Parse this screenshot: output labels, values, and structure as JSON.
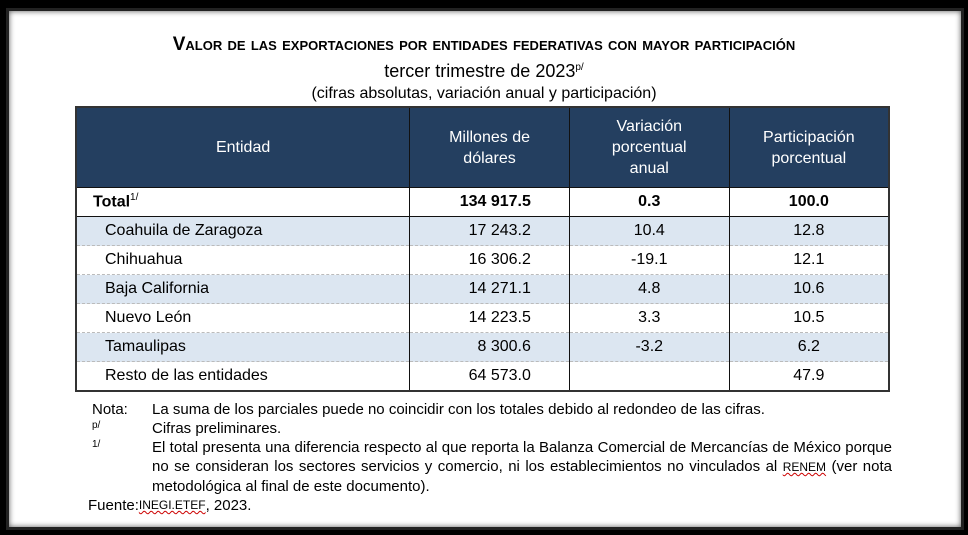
{
  "title": "Valor de las exportaciones por entidades federativas con mayor participación",
  "subtitle": "tercer trimestre de 2023",
  "subtitle_sup": "p/",
  "subtitle2": "(cifras absolutas, variación anual y participación)",
  "table": {
    "headers": [
      "Entidad",
      "Millones de dólares",
      "Variación porcentual anual",
      "Participación porcentual"
    ],
    "total": {
      "entidad": "Total",
      "sup": "1/",
      "millones": "134 917.5",
      "variacion": "0.3",
      "participacion": "100.0"
    },
    "rows": [
      {
        "entidad": "Coahuila de Zaragoza",
        "millones": "17 243.2",
        "variacion": "10.4",
        "participacion": "12.8"
      },
      {
        "entidad": "Chihuahua",
        "millones": "16 306.2",
        "variacion": "-19.1",
        "participacion": "12.1"
      },
      {
        "entidad": "Baja California",
        "millones": "14 271.1",
        "variacion": "4.8",
        "participacion": "10.6"
      },
      {
        "entidad": "Nuevo León",
        "millones": "14 223.5",
        "variacion": "3.3",
        "participacion": "10.5"
      },
      {
        "entidad": "Tamaulipas",
        "millones": "8 300.6",
        "variacion": "-3.2",
        "participacion": "6.2"
      },
      {
        "entidad": "Resto de las entidades",
        "millones": "64 573.0",
        "variacion": "",
        "participacion": "47.9"
      }
    ]
  },
  "notes": {
    "nota_label": "Nota:",
    "nota_text": "La suma de los parciales puede no coincidir con los totales debido al redondeo de las cifras.",
    "p_label": "p/",
    "p_text": "Cifras preliminares.",
    "one_label": "1/",
    "one_text_a": "El total presenta una diferencia respecto al que reporta la Balanza Comercial de Mercancías de México porque no se consideran los sectores servicios y comercio, ni los establecimientos no vinculados al ",
    "one_renem": "RENEM",
    "one_text_b": " (ver nota metodológica al final de este documento).",
    "fuente_label": "Fuente:",
    "fuente_src": "INEGI.ETEF",
    "fuente_year": ", 2023."
  },
  "colors": {
    "header_bg": "#243f60",
    "alt_row_bg": "#dce6f1"
  }
}
